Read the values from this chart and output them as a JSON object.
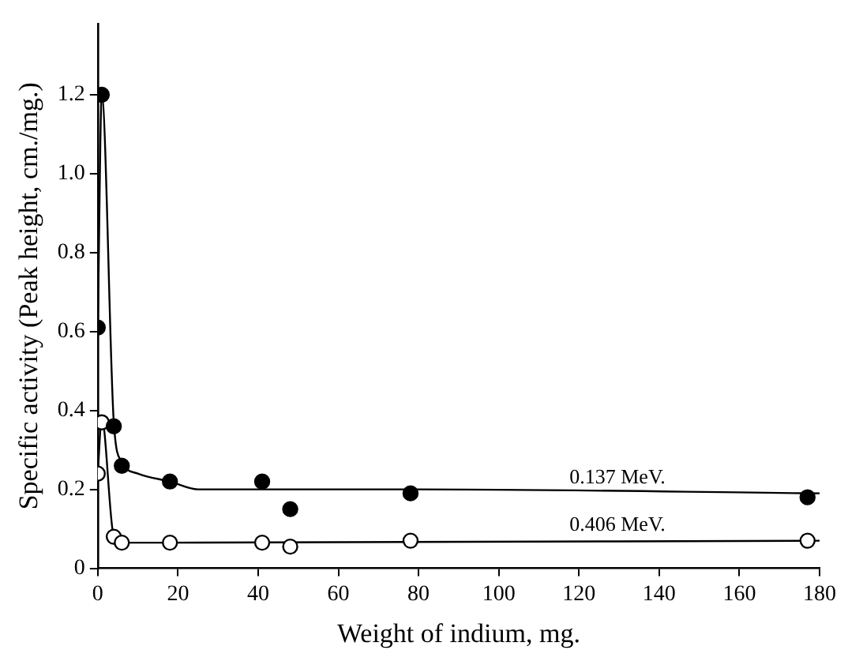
{
  "chart_data": {
    "type": "scatter",
    "xlabel": "Weight of indium, mg.",
    "ylabel": "Specific activity (Peak height, cm./mg.)",
    "xlim": [
      0,
      180
    ],
    "xticks": [
      0,
      20,
      40,
      60,
      80,
      100,
      120,
      140,
      160,
      180
    ],
    "ylim": [
      0,
      1.38
    ],
    "yticks": [
      0,
      0.2,
      0.4,
      0.6,
      0.8,
      {
        "value": 1,
        "label": "1.0"
      },
      1.2
    ],
    "grid": false,
    "legend": false,
    "marker": "circle",
    "series": [
      {
        "color": "#000000",
        "x": [
          0,
          1,
          4,
          6,
          18,
          41,
          48,
          78,
          177
        ],
        "values": [
          0.61,
          1.2,
          0.36,
          0.26,
          0.22,
          0.22,
          0.15,
          0.19,
          0.18
        ]
      },
      {
        "color": "#ffffff",
        "x": [
          0,
          1,
          4,
          6,
          18,
          41,
          48,
          78,
          177
        ],
        "values": [
          0.24,
          0.37,
          0.08,
          0.065,
          0.065,
          0.065,
          0.055,
          0.07,
          0.07
        ]
      },
      {
        "type": "line",
        "name": "0.137 MeV.",
        "marker": "none",
        "color": "#000000",
        "x": [
          0,
          1,
          4,
          6,
          10,
          18,
          25,
          80,
          180
        ],
        "values": [
          0.6,
          1.2,
          0.37,
          0.27,
          0.24,
          0.22,
          0.2,
          0.2,
          0.19
        ]
      },
      {
        "type": "line",
        "name": "0.406 MeV.",
        "marker": "none",
        "color": "#000000",
        "x": [
          0,
          1,
          4,
          6,
          180
        ],
        "values": [
          0.24,
          0.38,
          0.08,
          0.065,
          0.07
        ]
      }
    ]
  }
}
